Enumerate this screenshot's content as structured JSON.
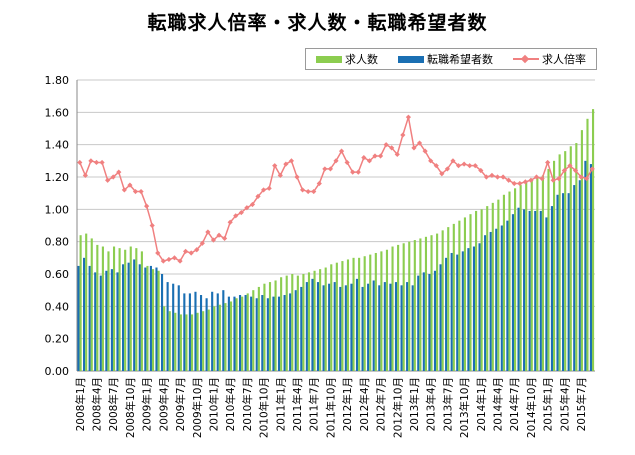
{
  "chart_data": {
    "type": "bar",
    "title": "転職求人倍率・求人数・転職希望者数",
    "ylim": [
      0,
      1.8
    ],
    "y_ticks": [
      "0.00",
      "0.20",
      "0.40",
      "0.60",
      "0.80",
      "1.00",
      "1.20",
      "1.40",
      "1.60",
      "1.80"
    ],
    "grid": true,
    "legend_position": "top-right",
    "categories": [
      "2008年1月",
      "2008年2月",
      "2008年3月",
      "2008年4月",
      "2008年5月",
      "2008年6月",
      "2008年7月",
      "2008年8月",
      "2008年9月",
      "2008年10月",
      "2008年11月",
      "2008年12月",
      "2009年1月",
      "2009年2月",
      "2009年3月",
      "2009年4月",
      "2009年5月",
      "2009年6月",
      "2009年7月",
      "2009年8月",
      "2009年9月",
      "2009年10月",
      "2009年11月",
      "2009年12月",
      "2010年1月",
      "2010年2月",
      "2010年3月",
      "2010年4月",
      "2010年5月",
      "2010年6月",
      "2010年7月",
      "2010年8月",
      "2010年9月",
      "2010年10月",
      "2010年11月",
      "2010年12月",
      "2011年1月",
      "2011年2月",
      "2011年3月",
      "2011年4月",
      "2011年5月",
      "2011年6月",
      "2011年7月",
      "2011年8月",
      "2011年9月",
      "2011年10月",
      "2011年11月",
      "2011年12月",
      "2012年1月",
      "2012年2月",
      "2012年3月",
      "2012年4月",
      "2012年5月",
      "2012年6月",
      "2012年7月",
      "2012年8月",
      "2012年9月",
      "2012年10月",
      "2012年11月",
      "2012年12月",
      "2013年1月",
      "2013年2月",
      "2013年3月",
      "2013年4月",
      "2013年5月",
      "2013年6月",
      "2013年7月",
      "2013年8月",
      "2013年9月",
      "2013年10月",
      "2013年11月",
      "2013年12月",
      "2014年1月",
      "2014年2月",
      "2014年3月",
      "2014年4月",
      "2014年5月",
      "2014年6月",
      "2014年7月",
      "2014年8月",
      "2014年9月",
      "2014年10月",
      "2014年11月",
      "2014年12月",
      "2015年1月",
      "2015年2月",
      "2015年3月",
      "2015年4月",
      "2015年5月",
      "2015年6月",
      "2015年7月",
      "2015年8月",
      "2015年9月"
    ],
    "tick_every": 3,
    "series": [
      {
        "name": "求人数",
        "type": "bar",
        "color": "#8ccd50",
        "values": [
          0.84,
          0.85,
          0.82,
          0.78,
          0.77,
          0.74,
          0.77,
          0.76,
          0.75,
          0.77,
          0.76,
          0.74,
          0.65,
          0.63,
          0.62,
          0.4,
          0.37,
          0.36,
          0.35,
          0.35,
          0.35,
          0.36,
          0.37,
          0.38,
          0.4,
          0.41,
          0.42,
          0.43,
          0.45,
          0.46,
          0.48,
          0.5,
          0.52,
          0.54,
          0.55,
          0.56,
          0.58,
          0.59,
          0.6,
          0.59,
          0.6,
          0.61,
          0.62,
          0.63,
          0.64,
          0.66,
          0.67,
          0.68,
          0.69,
          0.7,
          0.7,
          0.71,
          0.72,
          0.73,
          0.74,
          0.75,
          0.77,
          0.78,
          0.79,
          0.8,
          0.81,
          0.82,
          0.83,
          0.84,
          0.85,
          0.87,
          0.89,
          0.91,
          0.93,
          0.95,
          0.97,
          0.99,
          1.0,
          1.02,
          1.04,
          1.06,
          1.09,
          1.11,
          1.13,
          1.15,
          1.17,
          1.19,
          1.2,
          1.21,
          1.25,
          1.3,
          1.34,
          1.36,
          1.39,
          1.41,
          1.49,
          1.56,
          1.62
        ]
      },
      {
        "name": "転職希望者数",
        "type": "bar",
        "color": "#1a6fb3",
        "values": [
          0.65,
          0.7,
          0.65,
          0.61,
          0.59,
          0.62,
          0.63,
          0.61,
          0.66,
          0.67,
          0.69,
          0.66,
          0.64,
          0.65,
          0.64,
          0.6,
          0.55,
          0.54,
          0.53,
          0.48,
          0.48,
          0.49,
          0.47,
          0.45,
          0.49,
          0.48,
          0.5,
          0.46,
          0.46,
          0.47,
          0.47,
          0.46,
          0.45,
          0.47,
          0.45,
          0.46,
          0.46,
          0.47,
          0.48,
          0.5,
          0.52,
          0.55,
          0.57,
          0.55,
          0.53,
          0.54,
          0.55,
          0.52,
          0.53,
          0.54,
          0.57,
          0.52,
          0.54,
          0.56,
          0.53,
          0.55,
          0.54,
          0.55,
          0.53,
          0.55,
          0.53,
          0.59,
          0.61,
          0.6,
          0.62,
          0.66,
          0.7,
          0.73,
          0.72,
          0.74,
          0.76,
          0.77,
          0.79,
          0.84,
          0.86,
          0.88,
          0.9,
          0.93,
          0.97,
          1.01,
          1.0,
          0.99,
          0.99,
          0.99,
          0.95,
          1.02,
          1.09,
          1.1,
          1.1,
          1.15,
          1.18,
          1.3,
          1.28
        ]
      },
      {
        "name": "求人倍率",
        "type": "line",
        "color": "#f08080",
        "values": [
          1.29,
          1.21,
          1.3,
          1.29,
          1.29,
          1.18,
          1.2,
          1.23,
          1.12,
          1.15,
          1.11,
          1.11,
          1.02,
          0.9,
          0.73,
          0.68,
          0.69,
          0.7,
          0.68,
          0.74,
          0.73,
          0.75,
          0.79,
          0.86,
          0.81,
          0.84,
          0.82,
          0.92,
          0.96,
          0.98,
          1.01,
          1.03,
          1.08,
          1.12,
          1.13,
          1.27,
          1.21,
          1.28,
          1.3,
          1.2,
          1.12,
          1.11,
          1.11,
          1.16,
          1.25,
          1.25,
          1.3,
          1.36,
          1.29,
          1.23,
          1.23,
          1.32,
          1.3,
          1.33,
          1.33,
          1.4,
          1.38,
          1.34,
          1.46,
          1.57,
          1.38,
          1.41,
          1.36,
          1.3,
          1.27,
          1.22,
          1.25,
          1.3,
          1.27,
          1.28,
          1.27,
          1.27,
          1.24,
          1.2,
          1.21,
          1.2,
          1.2,
          1.18,
          1.16,
          1.16,
          1.17,
          1.18,
          1.2,
          1.19,
          1.29,
          1.18,
          1.19,
          1.24,
          1.27,
          1.24,
          1.2,
          1.19,
          1.25
        ]
      }
    ]
  }
}
